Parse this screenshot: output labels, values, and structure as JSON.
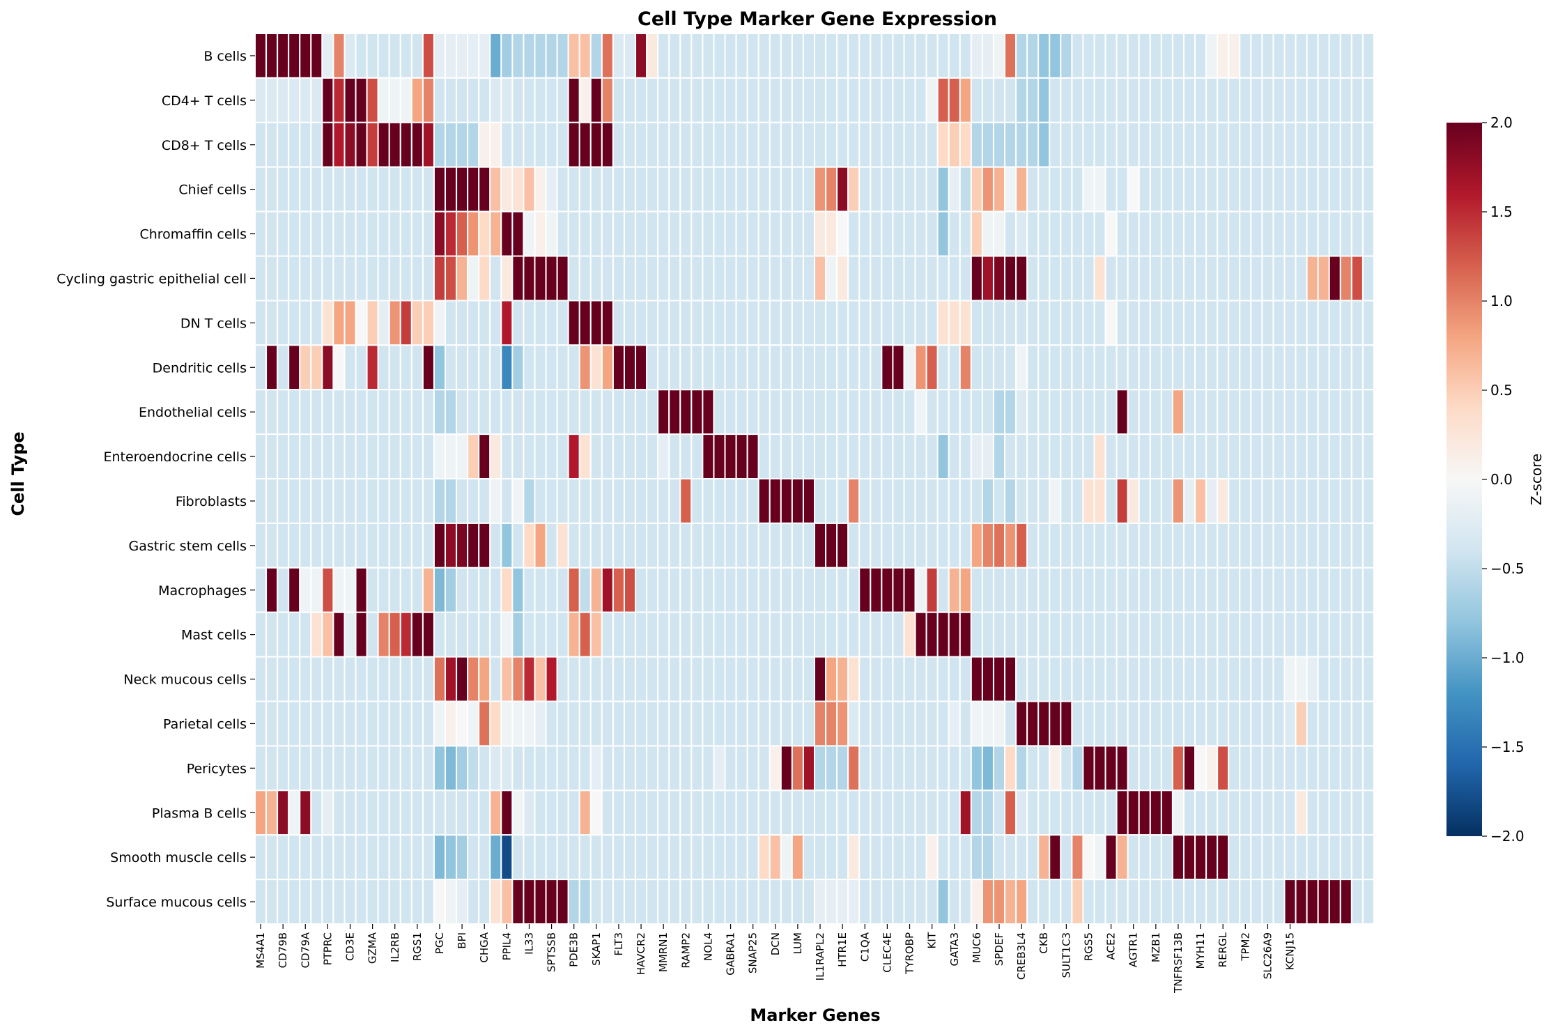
{
  "chart_data": {
    "type": "heatmap",
    "title": "Cell Type Marker Gene Expression",
    "xlabel": "Marker Genes",
    "ylabel": "Cell Type",
    "colorbar": {
      "label": "Z-score",
      "range": [
        -2.0,
        2.0
      ],
      "ticks": [
        "−2.0",
        "−1.5",
        "−1.0",
        "−0.5",
        "0.0",
        "0.5",
        "1.0",
        "1.5",
        "2.0"
      ],
      "colormap": "RdBu_r"
    },
    "rows": [
      "B cells",
      "CD4+ T cells",
      "CD8+ T cells",
      "Chief cells",
      "Chromaffin cells",
      "Cycling gastric epithelial cell",
      "DN T cells",
      "Dendritic cells",
      "Endothelial cells",
      "Enteroendocrine cells",
      "Fibroblasts",
      "Gastric stem cells",
      "Macrophages",
      "Mast cells",
      "Neck mucous cells",
      "Parietal cells",
      "Pericytes",
      "Plasma B cells",
      "Smooth muscle cells",
      "Surface mucous cells"
    ],
    "column_count": 100,
    "xtick_labels": [
      "MS4A1",
      "CD79B",
      "CD79A",
      "PTPRC",
      "CD3E",
      "GZMA",
      "IL2RB",
      "RGS1",
      "PGC",
      "BPI",
      "CHGA",
      "PPIL4",
      "IL33",
      "SPTSSB",
      "PDE3B",
      "SKAP1",
      "FLT3",
      "HAVCR2",
      "MMRN1",
      "RAMP2",
      "NOL4",
      "GABRA1",
      "SNAP25",
      "DCN",
      "LUM",
      "IL1RAPL2",
      "HTR1E",
      "C1QA",
      "CLEC4E",
      "TYROBP",
      "KIT",
      "GATA3",
      "MUC6",
      "SPDEF",
      "CREB3L4",
      "CKB",
      "SULT1C3",
      "RGS5",
      "ACE2",
      "AGTR1",
      "MZB1",
      "TNFRSF13B",
      "MYH11",
      "RERGL",
      "TPM2",
      "SLC26A9",
      "KCNJ15"
    ],
    "xtick_columns": [
      0,
      2,
      4,
      6,
      8,
      10,
      12,
      14,
      16,
      18,
      20,
      22,
      24,
      26,
      28,
      30,
      32,
      34,
      36,
      38,
      40,
      42,
      44,
      46,
      48,
      50,
      52,
      54,
      56,
      58,
      60,
      62,
      64,
      66,
      68,
      70,
      72,
      74,
      76,
      78,
      80,
      82,
      84,
      86,
      88,
      90,
      92
    ],
    "default_value": -0.4,
    "row_values": [
      {
        "row": "B cells",
        "values": {
          "0": 2,
          "1": 2,
          "2": 2,
          "3": 2,
          "4": 2,
          "5": 2,
          "6": -0.2,
          "7": 1.0,
          "8": -0.3,
          "9": -0.4,
          "10": -0.4,
          "11": -0.4,
          "12": -0.4,
          "13": -0.4,
          "14": -0.4,
          "15": 1.3,
          "16": -0.2,
          "17": -0.2,
          "18": -0.2,
          "19": -0.2,
          "20": -0.2,
          "21": -1.0,
          "22": -0.7,
          "23": -0.6,
          "24": -0.6,
          "25": -0.6,
          "26": -0.6,
          "27": -0.6,
          "28": 0.6,
          "29": 0.6,
          "30": -0.6,
          "31": 1.1,
          "32": -0.3,
          "33": -0.3,
          "34": 1.8,
          "35": 0.2,
          "64": -0.2,
          "65": -0.2,
          "66": -0.1,
          "67": 1.1,
          "68": -0.6,
          "69": -0.6,
          "70": -0.8,
          "71": -0.8,
          "72": -0.6,
          "85": -0.1,
          "86": 0.1,
          "87": 0.1
        }
      },
      {
        "row": "CD4+ T cells",
        "values": {
          "0": -0.3,
          "1": -0.3,
          "2": -0.3,
          "3": -0.3,
          "4": -0.3,
          "5": -0.3,
          "6": 2,
          "7": 1.5,
          "8": 2,
          "9": 2,
          "10": 1.3,
          "11": -0.1,
          "12": -0.1,
          "13": -0.1,
          "14": 0.8,
          "15": 1.0,
          "16": -0.4,
          "17": -0.4,
          "18": -0.4,
          "19": -0.4,
          "20": -0.4,
          "21": -0.3,
          "22": -0.3,
          "28": 2,
          "29": 0.1,
          "30": 2,
          "31": 1.0,
          "52": -0.4,
          "53": -0.4,
          "54": -0.4,
          "55": -0.4,
          "60": -0.1,
          "61": 1.2,
          "62": 1.2,
          "63": 0.8,
          "68": -0.6,
          "69": -0.6,
          "70": -0.8
        }
      },
      {
        "row": "CD8+ T cells",
        "values": {
          "6": 2,
          "7": 1.6,
          "8": 1.8,
          "9": 2,
          "10": 1.4,
          "11": 2,
          "12": 2,
          "13": 2,
          "14": 2,
          "15": 1.7,
          "16": -0.6,
          "17": -0.6,
          "18": -0.6,
          "19": -0.6,
          "20": 0.1,
          "21": 0.1,
          "28": 2,
          "29": 2,
          "30": 2,
          "31": 2,
          "61": 0.4,
          "62": 0.5,
          "63": 0.4,
          "64": -0.6,
          "65": -0.6,
          "66": -0.6,
          "67": -0.6,
          "68": -0.6,
          "69": -0.6,
          "70": -0.8
        }
      },
      {
        "row": "Chief cells",
        "values": {
          "16": 2,
          "17": 2,
          "18": 2,
          "19": 2,
          "20": 2,
          "21": 0.6,
          "22": 0.2,
          "23": 0.3,
          "24": 0.6,
          "25": 0.1,
          "26": -0.2,
          "50": 0.9,
          "51": 1.0,
          "52": 1.8,
          "53": 0.5,
          "61": -0.8,
          "62": -0.2,
          "63": -0.5,
          "64": 0.5,
          "65": 0.9,
          "66": 0.7,
          "67": -0.1,
          "68": 0.7,
          "74": -0.1,
          "75": -0.1,
          "78": 0.0
        }
      },
      {
        "row": "Chromaffin cells",
        "values": {
          "16": 1.8,
          "17": 1.5,
          "18": 1.2,
          "19": 0.9,
          "20": 0.4,
          "21": 0.7,
          "22": 2,
          "23": 2,
          "24": -0.1,
          "25": 0.1,
          "26": -0.1,
          "50": 0.2,
          "51": 0.2,
          "52": 0.0,
          "61": -0.8,
          "64": 0.5,
          "65": -0.1,
          "66": -0.1,
          "68": -0.3,
          "76": 0.0
        }
      },
      {
        "row": "Cycling gastric epithelial cell",
        "values": {
          "16": 1.4,
          "17": 1.3,
          "18": 0.7,
          "19": -0.1,
          "20": 0.4,
          "21": -0.4,
          "22": 0.2,
          "23": 2,
          "24": 2,
          "25": 2,
          "26": 2,
          "27": 2,
          "50": 0.6,
          "51": -0.1,
          "52": 0.2,
          "64": 2,
          "65": 1.7,
          "66": 1.9,
          "67": 2,
          "68": 2,
          "75": 0.3,
          "94": 0.7,
          "95": 0.7,
          "96": 2,
          "97": 1.0,
          "98": 1.3
        }
      },
      {
        "row": "DN T cells",
        "values": {
          "6": 0.3,
          "7": 0.8,
          "8": 0.8,
          "9": 0.0,
          "10": 0.5,
          "11": -0.2,
          "12": 0.9,
          "13": 1.4,
          "14": 0.5,
          "15": 0.5,
          "16": -0.1,
          "22": 1.6,
          "28": 2,
          "29": 2,
          "30": 2,
          "31": 2,
          "61": 0.3,
          "62": 0.3,
          "63": 0.3,
          "76": 0.0
        }
      },
      {
        "row": "Dendritic cells",
        "values": {
          "1": 2,
          "2": -0.4,
          "3": 2,
          "4": 0.5,
          "5": 0.5,
          "6": 1.8,
          "7": 0.0,
          "10": 1.5,
          "15": 2,
          "16": -0.8,
          "22": -1.3,
          "23": -0.7,
          "29": 0.9,
          "30": 0.3,
          "31": 0.8,
          "32": 2,
          "33": 2,
          "34": 2,
          "35": -0.4,
          "56": 2,
          "57": 2,
          "58": -0.1,
          "59": 0.9,
          "60": 1.2,
          "63": 1.0,
          "68": -0.1
        }
      },
      {
        "row": "Endothelial cells",
        "values": {
          "16": -0.6,
          "17": -0.6,
          "36": 2,
          "37": 2,
          "38": 2,
          "39": 2,
          "40": 2,
          "59": -0.1,
          "66": -0.6,
          "67": -0.6,
          "68": -0.3,
          "77": 2,
          "82": 0.8
        }
      },
      {
        "row": "Enteroendocrine cells",
        "values": {
          "16": -0.1,
          "17": -0.1,
          "18": -0.1,
          "19": 0.5,
          "20": 2,
          "21": 0.2,
          "28": 1.6,
          "29": 0.3,
          "30": -0.4,
          "36": -0.2,
          "40": 2,
          "41": 2,
          "42": 2,
          "43": 2,
          "44": 2,
          "61": -0.8,
          "64": -0.2,
          "65": -0.2,
          "66": -0.6,
          "75": 0.3
        }
      },
      {
        "row": "Fibroblasts",
        "values": {
          "16": -0.6,
          "17": -0.6,
          "21": -0.1,
          "23": -0.1,
          "24": -0.6,
          "38": 1.2,
          "45": 2,
          "46": 2,
          "47": 2,
          "48": 2,
          "49": 2,
          "50": -0.4,
          "51": -0.4,
          "52": -0.4,
          "53": 1.0,
          "65": -0.6,
          "66": -0.4,
          "67": -0.6,
          "71": -0.1,
          "74": 0.3,
          "75": 0.3,
          "77": 1.4,
          "78": 0.2,
          "82": 0.9,
          "83": -0.2,
          "84": 0.6,
          "85": -0.2,
          "86": 0.2
        }
      },
      {
        "row": "Gastric stem cells",
        "values": {
          "16": 2,
          "17": 1.8,
          "18": 1.9,
          "19": 2,
          "20": 2,
          "21": -0.4,
          "22": -0.8,
          "24": 0.4,
          "25": 0.8,
          "26": -0.4,
          "27": 0.3,
          "50": 2,
          "51": 2,
          "52": 2,
          "53": -0.4,
          "64": 0.8,
          "65": 1.0,
          "66": 1.1,
          "67": 0.9,
          "68": 1.2
        }
      },
      {
        "row": "Macrophages",
        "values": {
          "1": 2,
          "2": -0.4,
          "3": 2,
          "4": -0.1,
          "5": -0.1,
          "6": 1.3,
          "7": -0.1,
          "8": -0.1,
          "9": 2,
          "15": 0.7,
          "16": -0.9,
          "17": -0.7,
          "22": 0.4,
          "23": -0.8,
          "28": 1.2,
          "29": -0.5,
          "30": 0.7,
          "31": 1.7,
          "32": 1.2,
          "33": 1.3,
          "54": 2,
          "55": 2,
          "56": 2,
          "57": 2,
          "58": 2,
          "59": -0.1,
          "60": 1.4,
          "61": -0.4,
          "62": 0.7,
          "63": 0.8
        }
      },
      {
        "row": "Mast cells",
        "values": {
          "5": 0.3,
          "6": 0.6,
          "7": 2,
          "8": -0.2,
          "9": 2,
          "11": 1.0,
          "12": 1.2,
          "13": 1.5,
          "14": 2,
          "15": 2,
          "22": -0.1,
          "23": -0.7,
          "28": 0.7,
          "29": 1.2,
          "30": 0.6,
          "58": 0.3,
          "59": 2,
          "60": 2,
          "61": 2,
          "62": 2,
          "63": 2
        }
      },
      {
        "row": "Neck mucous cells",
        "values": {
          "16": 1.1,
          "17": 1.7,
          "18": 2,
          "19": 1.0,
          "20": 0.8,
          "21": -0.4,
          "22": 0.6,
          "23": 1.0,
          "24": 1.5,
          "25": 0.6,
          "26": 1.6,
          "50": 2,
          "51": 0.8,
          "52": 0.7,
          "53": 0.3,
          "64": 2,
          "65": 2,
          "66": 2,
          "67": 2,
          "68": -0.4,
          "92": -0.1,
          "93": -0.1,
          "94": -0.2
        }
      },
      {
        "row": "Parietal cells",
        "values": {
          "16": -0.1,
          "17": 0.1,
          "18": 0.0,
          "19": -0.1,
          "20": 1.1,
          "21": 0.4,
          "22": -0.1,
          "23": -0.1,
          "24": -0.1,
          "25": -0.2,
          "50": 1.0,
          "51": 1.0,
          "52": 0.9,
          "53": -0.3,
          "62": -0.2,
          "64": -0.1,
          "65": -0.1,
          "66": -0.1,
          "68": 2,
          "69": 2,
          "70": 2,
          "71": 2,
          "72": 2,
          "92": -0.3,
          "93": 0.5
        }
      },
      {
        "row": "Pericytes",
        "values": {
          "16": -0.8,
          "17": -0.9,
          "18": -0.7,
          "19": -0.5,
          "20": -0.4,
          "21": -0.3,
          "22": -0.3,
          "30": -0.2,
          "41": -0.2,
          "46": 0.1,
          "47": 2,
          "48": 1.1,
          "49": 1.7,
          "50": -0.6,
          "51": -0.6,
          "52": -0.6,
          "53": 1.1,
          "64": -0.8,
          "65": -0.9,
          "66": -0.6,
          "67": 0.4,
          "68": -0.6,
          "71": 0.1,
          "73": -0.6,
          "74": 2,
          "75": 2,
          "76": 2,
          "77": 2,
          "82": 1.2,
          "83": 2,
          "84": 0.0,
          "85": 0.1,
          "86": 1.3
        }
      },
      {
        "row": "Plasma B cells",
        "values": {
          "0": 0.8,
          "1": 0.7,
          "2": 1.8,
          "3": -0.1,
          "4": 1.8,
          "6": -0.2,
          "21": 0.7,
          "22": 2,
          "23": -0.1,
          "24": -0.3,
          "28": -0.4,
          "29": 0.7,
          "30": 0.0,
          "63": 1.7,
          "64": -0.6,
          "65": -0.6,
          "67": 1.2,
          "68": -0.3,
          "77": 2,
          "78": 2,
          "79": 2,
          "80": 2,
          "81": 2,
          "82": -0.1,
          "93": 0.2
        }
      },
      {
        "row": "Smooth muscle cells",
        "values": {
          "16": -0.9,
          "17": -0.8,
          "18": -0.7,
          "21": -1.0,
          "22": -1.8,
          "45": 0.4,
          "46": 0.6,
          "47": -0.1,
          "48": 0.8,
          "49": -0.4,
          "53": 0.2,
          "60": 0.1,
          "64": -0.6,
          "65": -0.6,
          "70": 0.7,
          "71": 2,
          "73": 1.0,
          "74": 0.0,
          "75": -0.1,
          "76": 2,
          "77": 0.7,
          "82": 2,
          "83": 2,
          "84": 2,
          "85": 2,
          "86": 2
        }
      },
      {
        "row": "Surface mucous cells",
        "values": {
          "16": 0.0,
          "17": -0.1,
          "18": -0.2,
          "21": 0.3,
          "22": 0.6,
          "23": 2,
          "24": 2,
          "25": 2,
          "26": 2,
          "27": 2,
          "28": -0.6,
          "29": -0.6,
          "50": -0.2,
          "51": -0.2,
          "52": -0.2,
          "53": -0.2,
          "61": -0.8,
          "64": 0.1,
          "65": 0.9,
          "66": 0.9,
          "67": 0.7,
          "68": 0.8,
          "73": 0.5,
          "92": 2,
          "93": 2,
          "94": 2,
          "95": 2,
          "96": 2,
          "97": 2
        }
      }
    ]
  }
}
